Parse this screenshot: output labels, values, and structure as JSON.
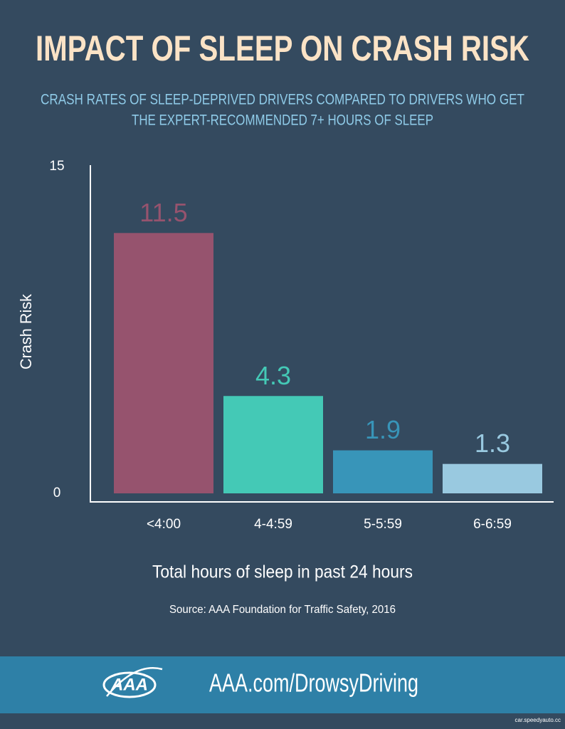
{
  "chart_data": {
    "type": "bar",
    "title": "IMPACT OF SLEEP ON CRASH RISK",
    "subtitle": [
      "CRASH RATES OF SLEEP-DEPRIVED DRIVERS COMPARED TO DRIVERS WHO GET",
      "THE EXPERT-RECOMMENDED 7+ HOURS OF SLEEP"
    ],
    "y_label": "Crash Risk",
    "x_label": "Total hours of sleep in past 24 hours",
    "source": "Source: AAA Foundation for Traffic Safety, 2016",
    "categories": [
      "<4:00",
      "4-4:59",
      "5-5:59",
      "6-6:59"
    ],
    "values": [
      11.5,
      4.3,
      1.9,
      1.3
    ],
    "colors": [
      "#96536e",
      "#44c9b6",
      "#3895b9",
      "#99c9e0"
    ],
    "ylim": [
      0,
      15
    ],
    "yticks": [
      0,
      15
    ],
    "grid": false
  },
  "footer": {
    "logo_text": "AAA",
    "url": "AAA.com/DrowsyDriving",
    "watermark": "car.speedyauto.cc"
  }
}
